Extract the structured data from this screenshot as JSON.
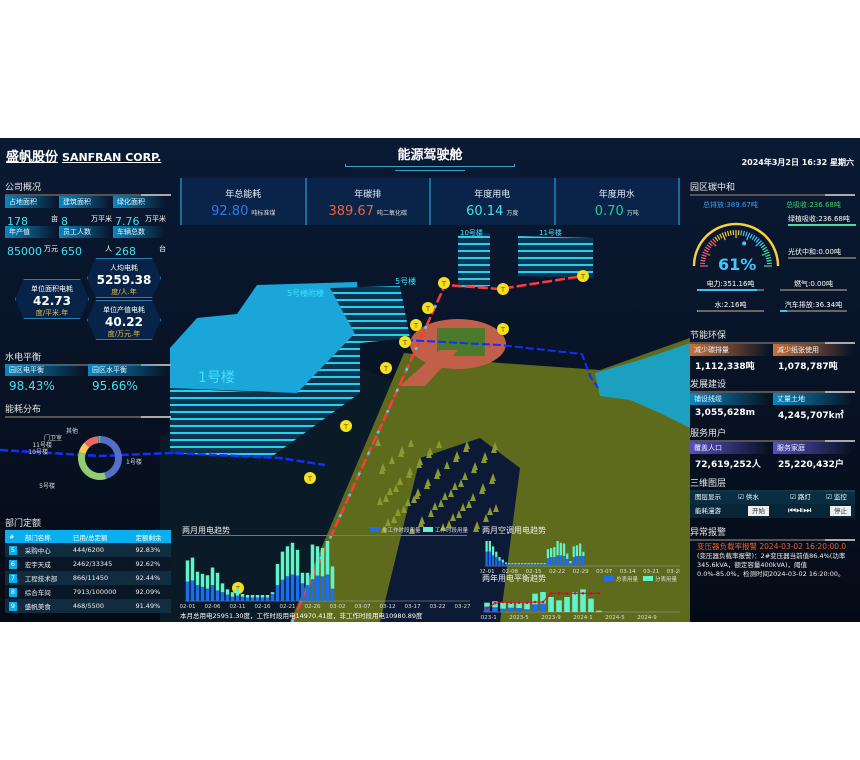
{
  "header": {
    "brand": "盛帆股份",
    "brand_en": "SANFRAN CORP.",
    "title": "能源驾驶舱",
    "datetime": "2024年3月2日 16:32 星期六"
  },
  "kpis": [
    {
      "label": "年总能耗",
      "value": "92.80",
      "unit": "吨标准煤",
      "color": "#2f7df0"
    },
    {
      "label": "年碳排",
      "value": "389.67",
      "unit": "吨二氧化碳",
      "color": "#f0603a"
    },
    {
      "label": "年度用电",
      "value": "60.14",
      "unit": "万度",
      "color": "#3fe3ee"
    },
    {
      "label": "年度用水",
      "value": "0.70",
      "unit": "万吨",
      "color": "#22c9a0"
    }
  ],
  "overview": {
    "title": "公司概况",
    "items": [
      {
        "label": "占地面积",
        "value": "178",
        "unit": "亩"
      },
      {
        "label": "建筑面积",
        "value": "8",
        "unit": "万平米"
      },
      {
        "label": "绿化面积",
        "value": "7.76",
        "unit": "万平米"
      },
      {
        "label": "年产值",
        "value": "85000",
        "unit": "万元"
      },
      {
        "label": "员工人数",
        "value": "650",
        "unit": "人"
      },
      {
        "label": "车辆总数",
        "value": "268",
        "unit": "台"
      }
    ],
    "hex": [
      {
        "label": "人均电耗",
        "value": "5259.38",
        "unit": "度/人.年"
      },
      {
        "label": "单位面积电耗",
        "value": "42.73",
        "unit": "度/平米.年"
      },
      {
        "label": "单位产值电耗",
        "value": "40.22",
        "unit": "度/万元.年"
      }
    ]
  },
  "balance": {
    "title": "水电平衡",
    "items": [
      {
        "label": "园区电平衡",
        "value": "98.43%"
      },
      {
        "label": "园区水平衡",
        "value": "95.66%"
      }
    ]
  },
  "distribution": {
    "title": "能耗分布",
    "slices": [
      {
        "name": "1号楼",
        "value": 45,
        "color": "#5470c6"
      },
      {
        "name": "5号楼",
        "value": 34,
        "color": "#91cc75"
      },
      {
        "name": "10号楼",
        "value": 8,
        "color": "#fac858"
      },
      {
        "name": "11号楼",
        "value": 11,
        "color": "#ee6666"
      },
      {
        "name": "门卫室",
        "value": 1,
        "color": "#3ba272"
      },
      {
        "name": "其他",
        "value": 1,
        "color": "#73c0de"
      }
    ]
  },
  "quota": {
    "title": "部门定额",
    "headers": [
      "#",
      "部门名称",
      "已用/总定额",
      "定额剩余"
    ],
    "rows": [
      [
        "5",
        "采购中心",
        "444/6200",
        "92.83%"
      ],
      [
        "6",
        "宏宇天成",
        "2462/33345",
        "92.62%"
      ],
      [
        "7",
        "工程技术部",
        "866/11450",
        "92.44%"
      ],
      [
        "8",
        "综合车间",
        "7913/100000",
        "92.09%"
      ],
      [
        "9",
        "盛帆美食",
        "468/5500",
        "91.49%"
      ]
    ]
  },
  "scene": {
    "labels": [
      "1号楼",
      "5号楼附楼",
      "5号楼",
      "10号楼",
      "11号楼"
    ]
  },
  "carbon": {
    "title": "园区碳中和",
    "emission": "总排放:389.67吨",
    "absorb": "总吸收:236.68吨",
    "gauge": 61,
    "gauge_label": "61%",
    "side": [
      {
        "label": "绿植吸收:236.68吨",
        "fill": 1.0,
        "color": "#3fe0a0"
      },
      {
        "label": "光伏中和:0.00吨",
        "fill": 0,
        "color": "#3fc3ee"
      }
    ],
    "bottom": [
      {
        "label": "电力:351.16吨",
        "fill": 0.9
      },
      {
        "label": "燃气:0.00吨",
        "fill": 0
      },
      {
        "label": "水:2.16吨",
        "fill": 0.01
      },
      {
        "label": "汽车排放:36.34吨",
        "fill": 0.1
      }
    ]
  },
  "eco": {
    "title": "节能环保",
    "items": [
      {
        "label": "减少碳排量",
        "value": "1,112,338吨"
      },
      {
        "label": "减少纸张使用",
        "value": "1,078,787吨"
      }
    ]
  },
  "dev": {
    "title": "发展建设",
    "items": [
      {
        "label": "铺设线缆",
        "value": "3,055,628m"
      },
      {
        "label": "丈量土地",
        "value": "4,245,707k㎡"
      }
    ]
  },
  "users": {
    "title": "服务用户",
    "items": [
      {
        "label": "覆盖人口",
        "value": "72,619,252人"
      },
      {
        "label": "服务家庭",
        "value": "25,220,432户"
      }
    ]
  },
  "layers": {
    "title": "三维图层",
    "display_label": "图层显示",
    "checks": [
      "供水",
      "路灯",
      "监控"
    ],
    "roam_label": "能耗漫游",
    "start": "开始",
    "stop": "停止"
  },
  "alarm": {
    "title": "异常报警",
    "heading": "变压器负载率报警 2024-03-02 16:20:00.0",
    "body": "(变压器负载率报警)：2#变压器当前值86.4%(功率345.6kVA，额定容量400kVA)，阈值0.0%-85.0%，检测时间2024-03-02 16:20:00。"
  },
  "chart_data": [
    {
      "type": "bar",
      "title": "两月用电趋势",
      "stacked": true,
      "categories": [
        "02-01",
        "02-02",
        "02-03",
        "02-04",
        "02-05",
        "02-06",
        "02-07",
        "02-08",
        "02-09",
        "02-10",
        "02-11",
        "02-12",
        "02-13",
        "02-14",
        "02-15",
        "02-16",
        "02-17",
        "02-18",
        "02-19",
        "02-20",
        "02-21",
        "02-22",
        "02-23",
        "02-24",
        "02-25",
        "02-26",
        "02-27",
        "02-28",
        "02-29",
        "03-01"
      ],
      "tick_labels": [
        "02-01",
        "02-06",
        "02-11",
        "02-16",
        "02-21",
        "02-26",
        "03-02",
        "03-07",
        "03-12",
        "03-17",
        "03-22",
        "03-27"
      ],
      "series": [
        {
          "name": "非工作时段用量",
          "color": "#1a6ef0",
          "values": [
            550,
            580,
            450,
            400,
            350,
            450,
            300,
            250,
            180,
            120,
            150,
            120,
            100,
            100,
            100,
            100,
            100,
            200,
            450,
            600,
            700,
            750,
            720,
            500,
            450,
            620,
            720,
            700,
            750,
            350
          ]
        },
        {
          "name": "工作时段用量",
          "color": "#5ff5c8",
          "values": [
            600,
            650,
            380,
            370,
            380,
            500,
            500,
            250,
            150,
            130,
            200,
            80,
            70,
            70,
            70,
            70,
            70,
            50,
            600,
            800,
            850,
            900,
            730,
            300,
            350,
            980,
            830,
            800,
            950,
            630
          ]
        }
      ],
      "footer": "本月总用电25951.30度，工作时段用电14970.41度，非工作时段用电10980.89度"
    },
    {
      "type": "bar",
      "title": "两月空调用电趋势",
      "stacked": true,
      "categories": [
        "02-01",
        "02-02",
        "02-03",
        "02-04",
        "02-05",
        "02-06",
        "02-07",
        "02-08",
        "02-09",
        "02-10",
        "02-11",
        "02-12",
        "02-13",
        "02-14",
        "02-15",
        "02-16",
        "02-17",
        "02-18",
        "02-19",
        "02-20",
        "02-21",
        "02-22",
        "02-23",
        "02-24",
        "02-25",
        "02-26",
        "02-27",
        "02-28",
        "02-29",
        "03-01",
        "03-02"
      ],
      "tick_labels": [
        "02-01",
        "02-08",
        "02-15",
        "02-22",
        "02-29",
        "03-07",
        "03-14",
        "03-21",
        "03-28"
      ],
      "series": [
        {
          "color": "#1a6ef0",
          "values": [
            40,
            40,
            30,
            25,
            15,
            10,
            6,
            5,
            5,
            5,
            5,
            5,
            5,
            5,
            5,
            5,
            5,
            5,
            5,
            22,
            25,
            25,
            30,
            30,
            28,
            20,
            8,
            25,
            28,
            28,
            28
          ]
        },
        {
          "color": "#5ff5c8",
          "values": [
            30,
            30,
            25,
            15,
            10,
            8,
            4,
            3,
            3,
            3,
            3,
            3,
            3,
            3,
            3,
            3,
            3,
            3,
            3,
            25,
            25,
            28,
            40,
            35,
            35,
            15,
            6,
            30,
            30,
            35,
            12
          ]
        }
      ]
    },
    {
      "type": "bar+line",
      "title": "两年用电平衡趋势",
      "stacked": true,
      "categories": [
        "2023-1",
        "2023-2",
        "2023-3",
        "2023-4",
        "2023-5",
        "2023-6",
        "2023-7",
        "2023-8",
        "2023-9",
        "2023-10",
        "2023-11",
        "2023-12",
        "2024-1",
        "2024-2",
        "2024-3"
      ],
      "tick_labels": [
        "2023-1",
        "2023-5",
        "2023-9",
        "2024-1",
        "2024-5",
        "2024-9"
      ],
      "series": [
        {
          "name": "总表用量",
          "color": "#1a6ef0",
          "values": [
            16,
            14,
            10,
            13,
            12,
            8,
            23,
            25,
            0,
            0,
            0,
            0,
            0,
            0,
            0
          ]
        },
        {
          "name": "分表用量",
          "color": "#5ff5c8",
          "values": [
            12,
            18,
            20,
            17,
            18,
            22,
            32,
            35,
            45,
            35,
            45,
            60,
            68,
            40,
            4
          ]
        },
        {
          "color": "#c8102e",
          "type": "line",
          "values": [
            15,
            35,
            40,
            37,
            37,
            37,
            40,
            40,
            75,
            75,
            75,
            75,
            75,
            75,
            75
          ]
        }
      ]
    }
  ]
}
